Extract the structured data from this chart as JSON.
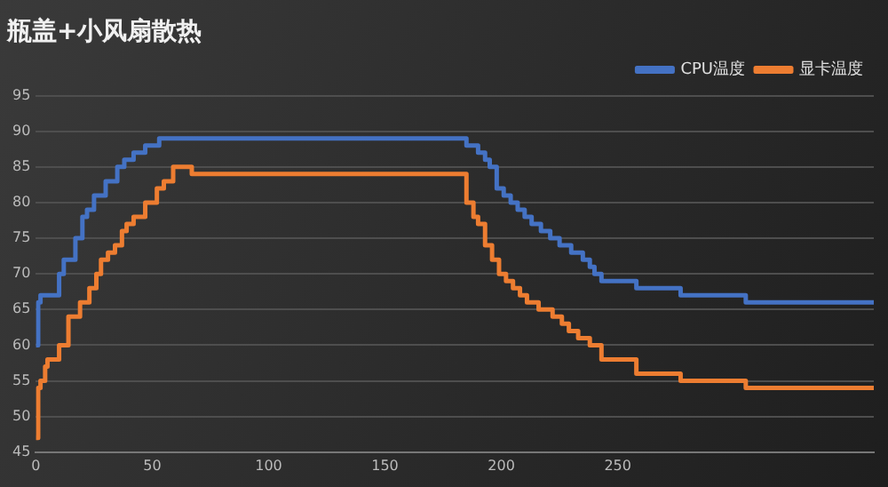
{
  "chart_data": {
    "type": "step",
    "title": "瓶盖+小风扇散热",
    "xlim": [
      0,
      360
    ],
    "xticks": [
      0,
      50,
      100,
      150,
      200,
      250
    ],
    "ylim": [
      45,
      95
    ],
    "yticks": [
      45,
      50,
      55,
      60,
      65,
      70,
      75,
      80,
      85,
      90,
      95
    ],
    "grid": "y",
    "legend": "top right",
    "series": [
      {
        "name": "CPU温度",
        "color": "#4472c4",
        "x": [
          0,
          1,
          2,
          8,
          10,
          12,
          15,
          17,
          20,
          22,
          25,
          30,
          35,
          38,
          42,
          47,
          53,
          185,
          190,
          193,
          195,
          198,
          201,
          204,
          207,
          210,
          213,
          217,
          221,
          225,
          230,
          235,
          238,
          240,
          243,
          258,
          277,
          305,
          360
        ],
        "values": [
          60,
          66,
          67,
          67,
          70,
          72,
          72,
          75,
          78,
          79,
          81,
          83,
          85,
          86,
          87,
          88,
          89,
          88,
          87,
          86,
          85,
          82,
          81,
          80,
          79,
          78,
          77,
          76,
          75,
          74,
          73,
          72,
          71,
          70,
          69,
          68,
          67,
          66,
          66
        ]
      },
      {
        "name": "显卡温度",
        "color": "#ed7d31",
        "x": [
          0,
          1,
          2,
          4,
          5,
          10,
          14,
          19,
          23,
          26,
          28,
          31,
          34,
          37,
          39,
          42,
          47,
          52,
          55,
          59,
          67,
          183,
          185,
          188,
          190,
          193,
          196,
          199,
          202,
          205,
          208,
          211,
          216,
          222,
          226,
          229,
          233,
          238,
          243,
          258,
          277,
          305,
          360
        ],
        "values": [
          47,
          54,
          55,
          57,
          58,
          60,
          64,
          66,
          68,
          70,
          72,
          73,
          74,
          76,
          77,
          78,
          80,
          82,
          83,
          85,
          84,
          84,
          80,
          78,
          77,
          74,
          72,
          70,
          69,
          68,
          67,
          66,
          65,
          64,
          63,
          62,
          61,
          60,
          58,
          56,
          55,
          54,
          54
        ]
      }
    ]
  }
}
